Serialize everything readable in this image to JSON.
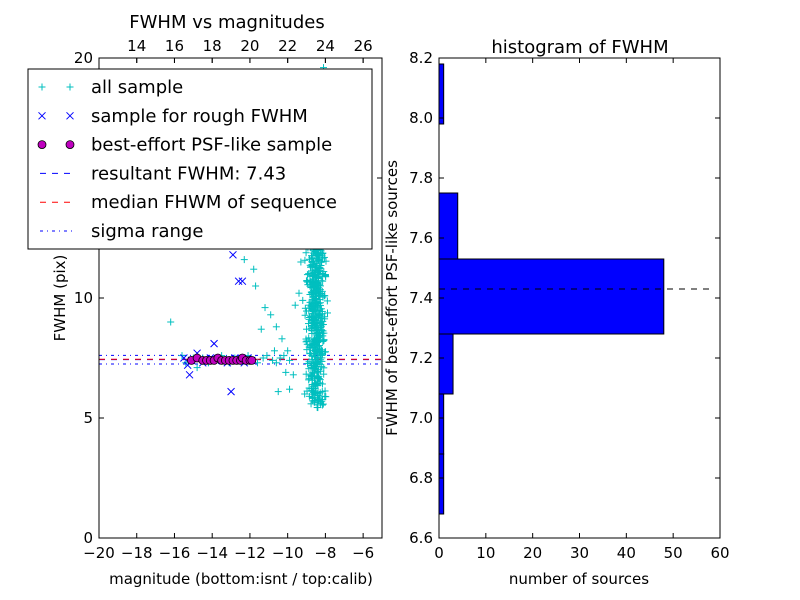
{
  "chart_data": [
    {
      "type": "scatter",
      "title": "FWHM vs magnitudes",
      "xlabel": "magnitude (bottom:isnt / top:calib)",
      "ylabel": "FWHM (pix)",
      "xlim": [
        -20,
        -5
      ],
      "ylim": [
        0,
        20
      ],
      "x_ticks": [
        "−20",
        "−18",
        "−16",
        "−14",
        "−12",
        "−10",
        "−8",
        "−6"
      ],
      "y_ticks": [
        "0",
        "5",
        "10",
        "15",
        "20"
      ],
      "top_axis": {
        "range": [
          12,
          27
        ],
        "ticks": [
          "14",
          "16",
          "18",
          "20",
          "22",
          "24",
          "26"
        ]
      },
      "legend_position": "upper-left",
      "series": [
        {
          "name": "all sample",
          "marker": "+",
          "color": "#00bfbf",
          "points": [
            [
              -16.2,
              9.0
            ],
            [
              -15.6,
              7.6
            ],
            [
              -15.4,
              7.3
            ],
            [
              -15.0,
              7.5
            ],
            [
              -14.8,
              7.1
            ],
            [
              -14.5,
              7.5
            ],
            [
              -14.2,
              7.3
            ],
            [
              -13.8,
              7.4
            ],
            [
              -13.5,
              7.6
            ],
            [
              -13.1,
              7.3
            ],
            [
              -12.8,
              7.5
            ],
            [
              -12.4,
              7.4
            ],
            [
              -12.1,
              7.6
            ],
            [
              -11.9,
              7.4
            ],
            [
              -11.6,
              7.3
            ],
            [
              -11.3,
              7.5
            ],
            [
              -11.1,
              7.6
            ],
            [
              -10.8,
              7.4
            ],
            [
              -10.6,
              7.3
            ],
            [
              -10.4,
              7.5
            ],
            [
              -10.2,
              7.6
            ],
            [
              -9.9,
              7.4
            ],
            [
              -11.8,
              11.2
            ],
            [
              -11.7,
              10.5
            ],
            [
              -11.2,
              9.6
            ],
            [
              -10.9,
              9.3
            ],
            [
              -10.6,
              8.8
            ],
            [
              -10.3,
              8.3
            ],
            [
              -10.1,
              6.9
            ],
            [
              -9.9,
              6.2
            ],
            [
              -9.7,
              6.8
            ],
            [
              -9.4,
              10.2
            ],
            [
              -9.2,
              9.9
            ],
            [
              -9.6,
              9.7
            ],
            [
              -9.1,
              6.0
            ],
            [
              -9.0,
              8.7
            ],
            [
              -9.7,
              18.5
            ],
            [
              -9.6,
              20.5
            ],
            [
              -8.4,
              20.6
            ],
            [
              -8.1,
              19.6
            ],
            [
              -10.7,
              7.8
            ],
            [
              -10.5,
              6.1
            ],
            [
              -11.4,
              8.7
            ],
            [
              -12.3,
              11.6
            ],
            [
              -10.0,
              7.8
            ],
            [
              -9.3,
              11.5
            ]
          ],
          "cluster": {
            "x_range": [
              -9.2,
              -7.8
            ],
            "y_range": [
              5.4,
              13.5
            ],
            "count": 600
          }
        },
        {
          "name": "sample for rough FWHM",
          "marker": "x",
          "color": "#0000ff",
          "points": [
            [
              -15.5,
              7.5
            ],
            [
              -15.3,
              7.2
            ],
            [
              -15.2,
              6.8
            ],
            [
              -15.1,
              7.4
            ],
            [
              -14.8,
              7.7
            ],
            [
              -14.5,
              7.3
            ],
            [
              -14.3,
              7.4
            ],
            [
              -14.1,
              7.5
            ],
            [
              -13.9,
              8.1
            ],
            [
              -13.5,
              7.4
            ],
            [
              -13.2,
              7.3
            ],
            [
              -13.0,
              7.4
            ],
            [
              -12.8,
              7.5
            ],
            [
              -12.6,
              7.4
            ],
            [
              -12.3,
              7.3
            ],
            [
              -12.1,
              7.5
            ],
            [
              -11.9,
              7.4
            ],
            [
              -13.0,
              6.1
            ],
            [
              -12.9,
              11.8
            ],
            [
              -12.6,
              10.7
            ],
            [
              -12.4,
              10.7
            ]
          ]
        },
        {
          "name": "best-effort PSF-like sample",
          "marker": "o",
          "color": "#bf00bf",
          "points": [
            [
              -15.1,
              7.4
            ],
            [
              -14.8,
              7.5
            ],
            [
              -14.5,
              7.4
            ],
            [
              -14.3,
              7.4
            ],
            [
              -14.1,
              7.4
            ],
            [
              -13.9,
              7.4
            ],
            [
              -13.7,
              7.5
            ],
            [
              -13.5,
              7.4
            ],
            [
              -13.3,
              7.4
            ],
            [
              -13.1,
              7.4
            ],
            [
              -12.9,
              7.4
            ],
            [
              -12.7,
              7.4
            ],
            [
              -12.5,
              7.4
            ],
            [
              -12.4,
              7.5
            ],
            [
              -12.2,
              7.4
            ],
            [
              -12.0,
              7.4
            ],
            [
              -11.9,
              7.4
            ]
          ]
        }
      ],
      "lines": [
        {
          "name": "resultant FWHM: 7.43",
          "value": 7.43,
          "style": "dashed",
          "color": "#0000ff"
        },
        {
          "name": "median FHWM of sequence",
          "value": 7.45,
          "style": "dashed",
          "color": "#ff0000"
        },
        {
          "name": "sigma range",
          "values": [
            7.25,
            7.61
          ],
          "style": "dashdot",
          "color": "#0000ff"
        }
      ]
    },
    {
      "type": "bar",
      "orientation": "horizontal",
      "title": "histogram of FWHM",
      "xlabel": "number of sources",
      "ylabel": "FWHM of best-effort PSF-like sources",
      "xlim": [
        0,
        60
      ],
      "ylim": [
        6.6,
        8.2
      ],
      "x_ticks": [
        "0",
        "10",
        "20",
        "30",
        "40",
        "50",
        "60"
      ],
      "y_ticks": [
        "6.6",
        "6.8",
        "7.0",
        "7.2",
        "7.4",
        "7.6",
        "7.8",
        "8.0",
        "8.2"
      ],
      "bar_color": "#0000ff",
      "bins": [
        {
          "from": 6.68,
          "to": 6.88,
          "count": 1
        },
        {
          "from": 6.88,
          "to": 7.08,
          "count": 1
        },
        {
          "from": 7.08,
          "to": 7.28,
          "count": 3
        },
        {
          "from": 7.28,
          "to": 7.53,
          "count": 48
        },
        {
          "from": 7.53,
          "to": 7.75,
          "count": 4
        },
        {
          "from": 7.75,
          "to": 7.98,
          "count": 0
        },
        {
          "from": 7.98,
          "to": 8.18,
          "count": 1
        }
      ],
      "reference_line": {
        "value": 7.43,
        "style": "dashed",
        "color": "#000000",
        "x_range": [
          0,
          58
        ]
      }
    }
  ]
}
